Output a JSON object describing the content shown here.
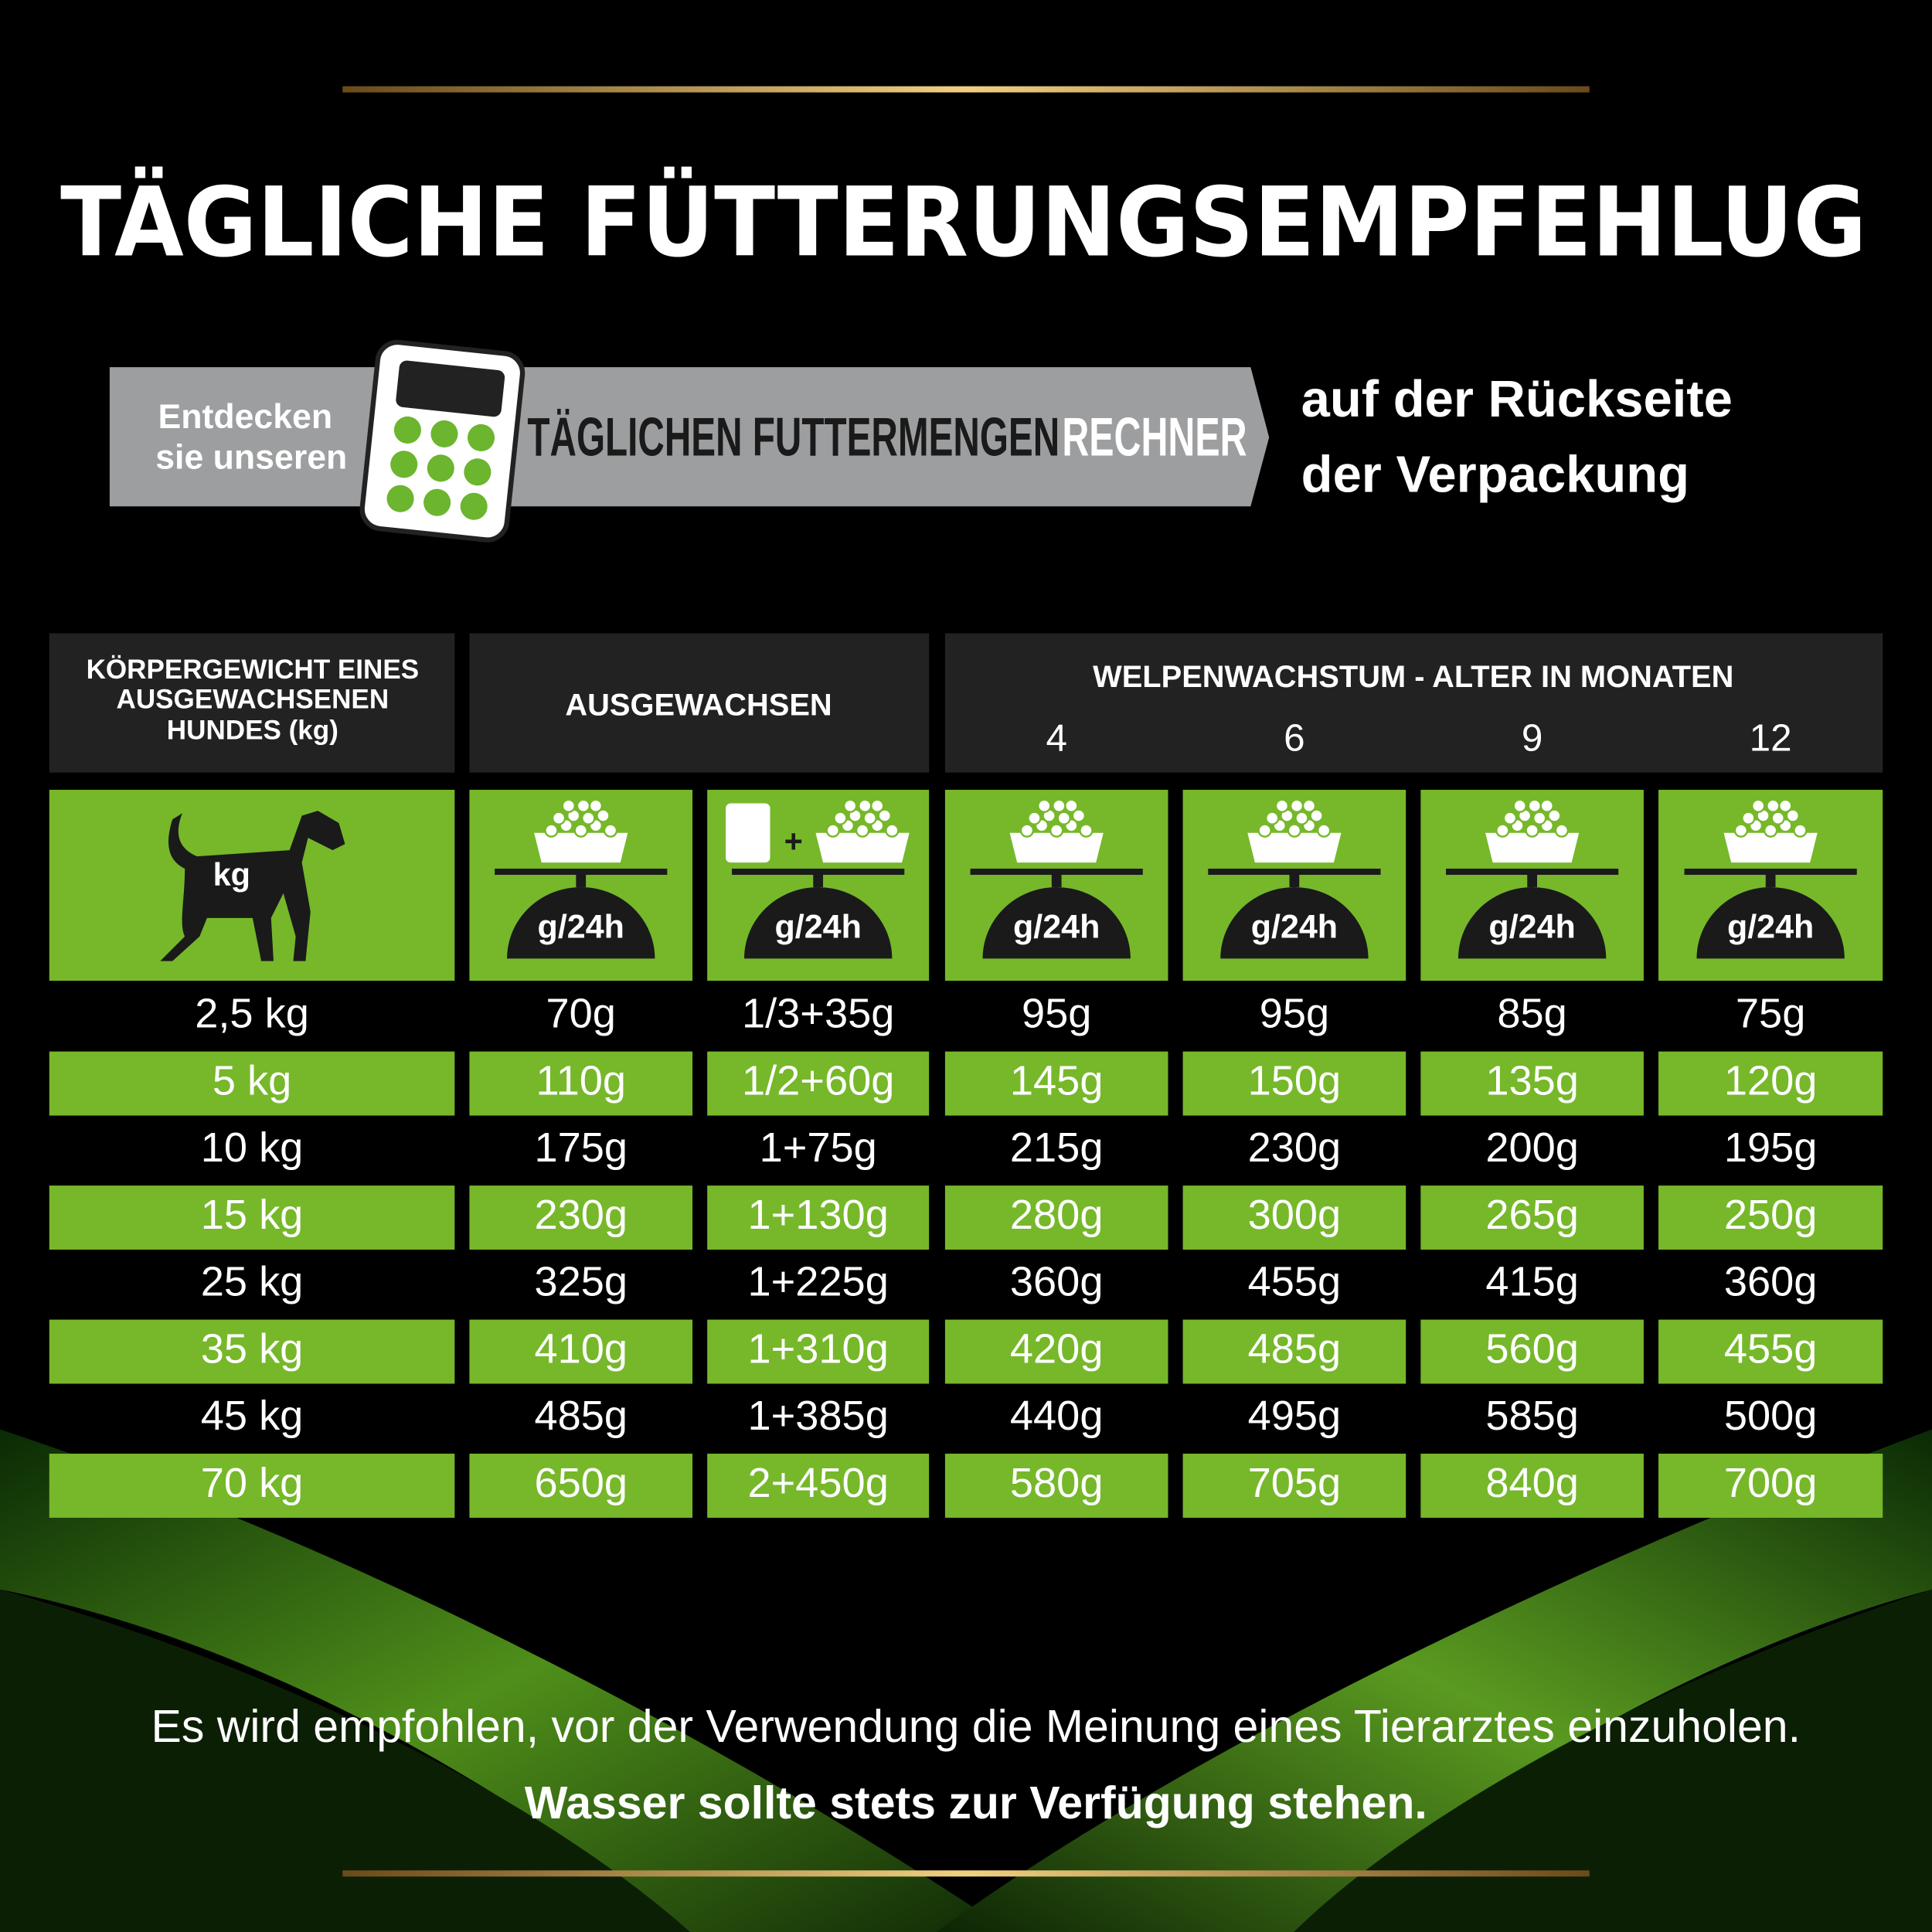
{
  "header": {
    "title": "TÄGLICHE FÜTTERUNGSEMPFEHLUG"
  },
  "banner": {
    "intro": [
      "Entdecken",
      "sie unseren"
    ],
    "name_dark": "TÄGLICHEN FUTTERMENGEN",
    "name_light": "RECHNER",
    "note": [
      "auf der Rückseite",
      "der Verpackung"
    ]
  },
  "table": {
    "weight_header": [
      "KÖRPERGEWICHT EINES",
      "AUSGEWACHSENEN",
      "HUNDES (kg)"
    ],
    "adult_header": "AUSGEWACHSEN",
    "puppy_header": "WELPENWACHSTUM - ALTER IN MONATEN",
    "months": [
      "4",
      "6",
      "9",
      "12"
    ],
    "icon_weight": "kg",
    "icon_plus": "+",
    "icon_food": [
      "g/24h",
      "g/24h",
      "g/24h",
      "g/24h",
      "g/24h",
      "g/24h"
    ],
    "rows": [
      [
        "2,5 kg",
        "70g",
        "1/3+35g",
        "95g",
        "95g",
        "85g",
        "75g"
      ],
      [
        "5 kg",
        "110g",
        "1/2+60g",
        "145g",
        "150g",
        "135g",
        "120g"
      ],
      [
        "10 kg",
        "175g",
        "1+75g",
        "215g",
        "230g",
        "200g",
        "195g"
      ],
      [
        "15 kg",
        "230g",
        "1+130g",
        "280g",
        "300g",
        "265g",
        "250g"
      ],
      [
        "25 kg",
        "325g",
        "1+225g",
        "360g",
        "455g",
        "415g",
        "360g"
      ],
      [
        "35 kg",
        "410g",
        "1+310g",
        "420g",
        "485g",
        "560g",
        "455g"
      ],
      [
        "45 kg",
        "485g",
        "1+385g",
        "440g",
        "495g",
        "585g",
        "500g"
      ],
      [
        "70 kg",
        "650g",
        "2+450g",
        "580g",
        "705g",
        "840g",
        "700g"
      ]
    ]
  },
  "footer": {
    "advice": "Es wird empfohlen, vor der Verwendung die Meinung eines Tierarztes einzuholen.",
    "water": "Wasser sollte stets zur Verfügung stehen."
  }
}
